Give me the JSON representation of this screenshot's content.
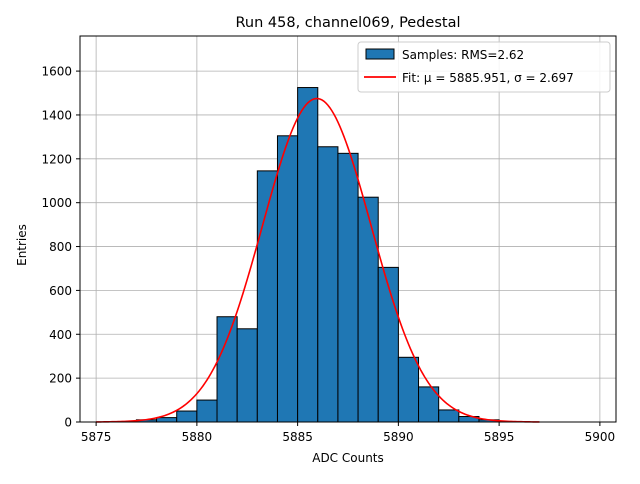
{
  "chart_data": {
    "type": "bar",
    "title": "Run 458, channel069, Pedestal",
    "xlabel": "ADC Counts",
    "ylabel": "Entries",
    "xlim": [
      5874.2,
      5900.8
    ],
    "ylim": [
      0,
      1760
    ],
    "xticks": [
      5875,
      5880,
      5885,
      5890,
      5895,
      5900
    ],
    "yticks": [
      0,
      200,
      400,
      600,
      800,
      1000,
      1200,
      1400,
      1600
    ],
    "grid": true,
    "legend_position": "upper-right",
    "bin_width": 1,
    "bins": [
      {
        "x": 5877,
        "count": 10
      },
      {
        "x": 5878,
        "count": 20
      },
      {
        "x": 5879,
        "count": 50
      },
      {
        "x": 5880,
        "count": 100
      },
      {
        "x": 5881,
        "count": 480
      },
      {
        "x": 5882,
        "count": 425
      },
      {
        "x": 5883,
        "count": 1145
      },
      {
        "x": 5884,
        "count": 1305
      },
      {
        "x": 5885,
        "count": 1525
      },
      {
        "x": 5886,
        "count": 1255
      },
      {
        "x": 5887,
        "count": 1225
      },
      {
        "x": 5888,
        "count": 1025
      },
      {
        "x": 5889,
        "count": 705
      },
      {
        "x": 5890,
        "count": 295
      },
      {
        "x": 5891,
        "count": 160
      },
      {
        "x": 5892,
        "count": 55
      },
      {
        "x": 5893,
        "count": 25
      },
      {
        "x": 5894,
        "count": 10
      }
    ],
    "fit": {
      "mu": 5885.951,
      "sigma": 2.697,
      "amplitude": 1475,
      "x_range": [
        5875,
        5897
      ]
    },
    "legend": {
      "samples_label": "Samples: RMS=2.62",
      "fit_label": "Fit: μ = 5885.951, σ = 2.697"
    },
    "colors": {
      "bars": "#1f77b4",
      "bar_edge": "#000000",
      "fit_line": "#ff0000",
      "grid": "#b0b0b0"
    }
  }
}
